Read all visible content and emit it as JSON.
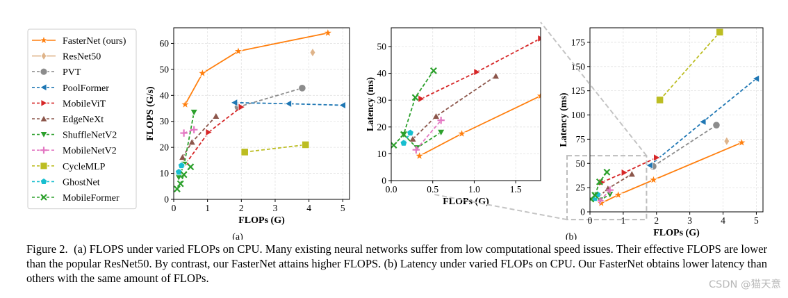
{
  "figure": {
    "caption_label": "Figure 2.",
    "caption_text": "(a) FLOPS under varied FLOPs on CPU. Many existing neural networks suffer from low computational speed issues. Their effective FLOPS are lower than the popular ResNet50. By contrast, our FasterNet attains higher FLOPS. (b) Latency under varied FLOPs on CPU. Our FasterNet obtains lower latency than others with the same amount of FLOPs.",
    "panel_a_label": "(a)",
    "panel_b_label": "(b)",
    "watermark": "CSDN @猫天意"
  },
  "legend": [
    {
      "name": "FasterNet (ours)",
      "color": "#ff7f0e",
      "marker": "star",
      "dash": false
    },
    {
      "name": "ResNet50",
      "color": "#dfb48a",
      "marker": "diamond",
      "dash": false
    },
    {
      "name": "PVT",
      "color": "#8c8c8c",
      "marker": "circle",
      "dash": true
    },
    {
      "name": "PoolFormer",
      "color": "#1f77b4",
      "marker": "triangle-left",
      "dash": true
    },
    {
      "name": "MobileViT",
      "color": "#d62728",
      "marker": "triangle-right",
      "dash": true
    },
    {
      "name": "EdgeNeXt",
      "color": "#8c564b",
      "marker": "triangle-up",
      "dash": true
    },
    {
      "name": "ShuffleNetV2",
      "color": "#2ca02c",
      "marker": "triangle-down",
      "dash": true
    },
    {
      "name": "MobileNetV2",
      "color": "#e377c2",
      "marker": "plus",
      "dash": true
    },
    {
      "name": "CycleMLP",
      "color": "#bcbd22",
      "marker": "square",
      "dash": true
    },
    {
      "name": "GhostNet",
      "color": "#17becf",
      "marker": "pentagon",
      "dash": true
    },
    {
      "name": "MobileFormer",
      "color": "#2ca02c",
      "marker": "x",
      "dash": true
    }
  ],
  "chart_data": [
    {
      "id": "a",
      "type": "line",
      "title": "",
      "xlabel": "FLOPs (G)",
      "ylabel": "FLOPS (G/s)",
      "xlim": [
        0,
        5.2
      ],
      "ylim": [
        0,
        66
      ],
      "xticks": [
        "0",
        "1",
        "2",
        "3",
        "4",
        "5"
      ],
      "yticks": [
        "0",
        "10",
        "20",
        "30",
        "40",
        "50",
        "60"
      ],
      "xtick_values": [
        0,
        1,
        2,
        3,
        4,
        5
      ],
      "ytick_values": [
        0,
        10,
        20,
        30,
        40,
        50,
        60
      ],
      "grid": true,
      "series": [
        {
          "name": "FasterNet (ours)",
          "x": [
            0.34,
            0.85,
            1.91,
            4.56
          ],
          "y": [
            36.5,
            48.5,
            57.0,
            64.0
          ]
        },
        {
          "name": "ResNet50",
          "x": [
            4.11
          ],
          "y": [
            56.5
          ]
        },
        {
          "name": "PVT",
          "x": [
            1.9,
            3.8
          ],
          "y": [
            35.5,
            42.8
          ]
        },
        {
          "name": "PoolFormer",
          "x": [
            1.8,
            3.4,
            5.0
          ],
          "y": [
            37.2,
            36.8,
            36.2
          ]
        },
        {
          "name": "MobileViT",
          "x": [
            0.36,
            1.03,
            2.0
          ],
          "y": [
            13.8,
            25.8,
            35.5
          ]
        },
        {
          "name": "EdgeNeXt",
          "x": [
            0.26,
            0.54,
            1.25
          ],
          "y": [
            16.2,
            22.0,
            32.0
          ]
        },
        {
          "name": "ShuffleNetV2",
          "x": [
            0.15,
            0.31,
            0.6
          ],
          "y": [
            8.5,
            13.5,
            33.5
          ]
        },
        {
          "name": "MobileNetV2",
          "x": [
            0.3,
            0.6
          ],
          "y": [
            25.5,
            26.8
          ]
        },
        {
          "name": "CycleMLP",
          "x": [
            2.1,
            3.9
          ],
          "y": [
            18.2,
            21.0
          ]
        },
        {
          "name": "GhostNet",
          "x": [
            0.15,
            0.23
          ],
          "y": [
            10.5,
            13.0
          ]
        },
        {
          "name": "MobileFormer",
          "x": [
            0.1,
            0.2,
            0.3,
            0.5
          ],
          "y": [
            4.0,
            6.0,
            9.5,
            12.5
          ]
        }
      ]
    },
    {
      "id": "b_zoom",
      "type": "line",
      "title": "",
      "xlabel": "FLOPs (G)",
      "ylabel": "Latency (ms)",
      "xlim": [
        0,
        1.8
      ],
      "ylim": [
        0,
        57
      ],
      "xticks": [
        "0.0",
        "0.5",
        "1.0",
        "1.5"
      ],
      "yticks": [
        "0",
        "10",
        "20",
        "30",
        "40",
        "50"
      ],
      "xtick_values": [
        0,
        0.5,
        1.0,
        1.5
      ],
      "ytick_values": [
        0,
        10,
        20,
        30,
        40,
        50
      ],
      "grid": true,
      "series": [
        {
          "name": "FasterNet (ours)",
          "x": [
            0.34,
            0.85,
            1.8
          ],
          "y": [
            9.2,
            17.5,
            31.6
          ]
        },
        {
          "name": "MobileViT",
          "x": [
            0.36,
            1.03,
            1.8
          ],
          "y": [
            30.5,
            40.5,
            53.0
          ]
        },
        {
          "name": "EdgeNeXt",
          "x": [
            0.26,
            0.54,
            1.26
          ],
          "y": [
            15.5,
            24.0,
            39.0
          ]
        },
        {
          "name": "ShuffleNetV2",
          "x": [
            0.15,
            0.31,
            0.6
          ],
          "y": [
            17.2,
            12.2,
            18.0
          ]
        },
        {
          "name": "MobileNetV2",
          "x": [
            0.3,
            0.6
          ],
          "y": [
            11.5,
            22.5
          ]
        },
        {
          "name": "GhostNet",
          "x": [
            0.15,
            0.23
          ],
          "y": [
            14.0,
            17.8
          ]
        },
        {
          "name": "MobileFormer",
          "x": [
            0.03,
            0.15,
            0.29,
            0.51
          ],
          "y": [
            13.2,
            17.2,
            31.0,
            41.0
          ]
        }
      ]
    },
    {
      "id": "b_full",
      "type": "line",
      "title": "",
      "xlabel": "FLOPs (G)",
      "ylabel": "Latency (ms)",
      "xlim": [
        0,
        5.2
      ],
      "ylim": [
        0,
        190
      ],
      "xticks": [
        "0",
        "1",
        "2",
        "3",
        "4",
        "5"
      ],
      "yticks": [
        "0",
        "25",
        "50",
        "75",
        "100",
        "125",
        "150",
        "175"
      ],
      "xtick_values": [
        0,
        1,
        2,
        3,
        4,
        5
      ],
      "ytick_values": [
        0,
        25,
        50,
        75,
        100,
        125,
        150,
        175
      ],
      "grid": true,
      "zoom_region": {
        "x": [
          0,
          1.7
        ],
        "y": [
          -8,
          58
        ]
      },
      "series": [
        {
          "name": "FasterNet (ours)",
          "x": [
            0.34,
            0.85,
            1.91,
            4.56
          ],
          "y": [
            9,
            17.5,
            33,
            71.5
          ]
        },
        {
          "name": "ResNet50",
          "x": [
            4.11
          ],
          "y": [
            73
          ]
        },
        {
          "name": "PVT",
          "x": [
            1.9,
            3.8
          ],
          "y": [
            47,
            89.5
          ]
        },
        {
          "name": "PoolFormer",
          "x": [
            1.8,
            3.4,
            5.0
          ],
          "y": [
            48,
            93,
            137.5
          ]
        },
        {
          "name": "MobileViT",
          "x": [
            0.36,
            1.03,
            2.0
          ],
          "y": [
            30.5,
            40.5,
            56
          ]
        },
        {
          "name": "EdgeNeXt",
          "x": [
            0.26,
            0.54,
            1.26
          ],
          "y": [
            15.5,
            24,
            39
          ]
        },
        {
          "name": "ShuffleNetV2",
          "x": [
            0.15,
            0.31,
            0.6
          ],
          "y": [
            17.2,
            12.2,
            18
          ]
        },
        {
          "name": "MobileNetV2",
          "x": [
            0.3,
            0.6
          ],
          "y": [
            11.5,
            22.5
          ]
        },
        {
          "name": "CycleMLP",
          "x": [
            2.1,
            3.9
          ],
          "y": [
            115.5,
            185.5
          ]
        },
        {
          "name": "GhostNet",
          "x": [
            0.15,
            0.23
          ],
          "y": [
            14,
            17.8
          ]
        },
        {
          "name": "MobileFormer",
          "x": [
            0.03,
            0.15,
            0.29,
            0.51
          ],
          "y": [
            13.2,
            17.2,
            31,
            41
          ]
        }
      ]
    }
  ]
}
